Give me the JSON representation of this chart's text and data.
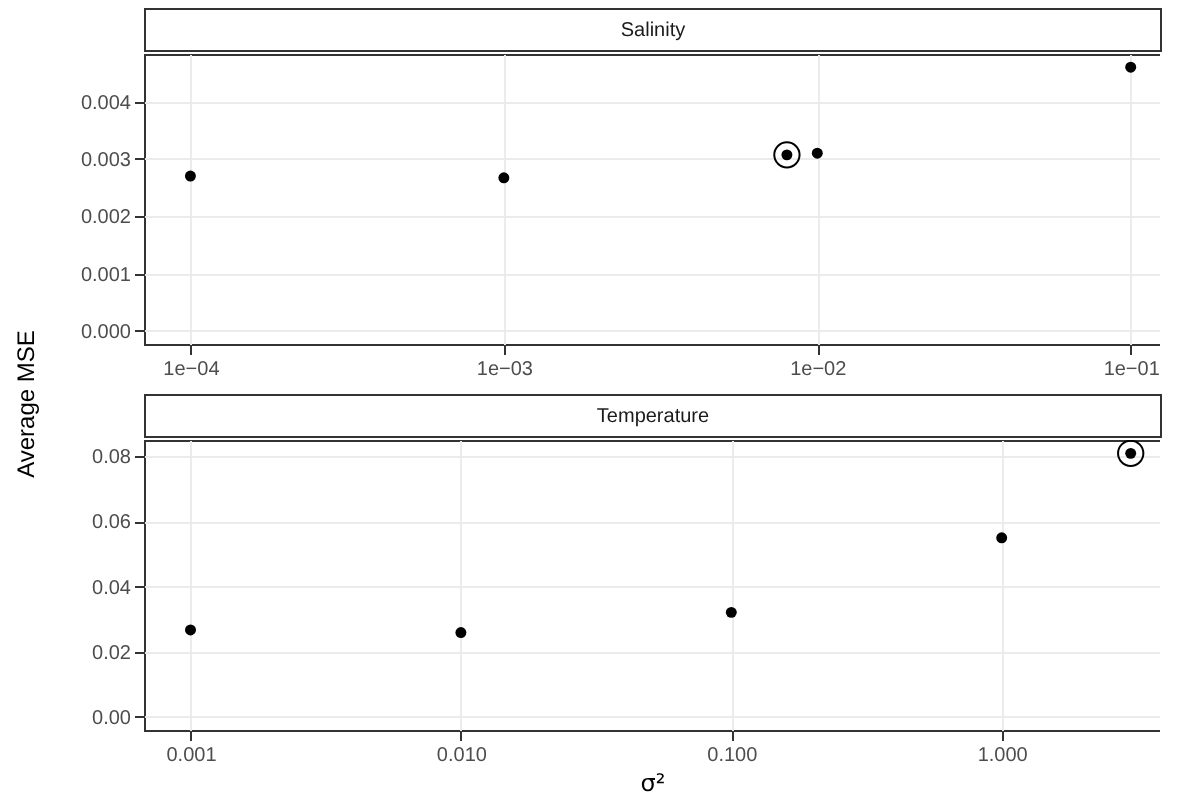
{
  "chart_data": [
    {
      "type": "scatter",
      "title": "Salinity",
      "ylabel": "Average MSE",
      "log": "x",
      "grid": true,
      "marker": "circle",
      "xlim": [
        7.11e-05,
        0.124
      ],
      "ylim": [
        -0.00023,
        0.00483
      ],
      "xticks": [
        {
          "value": 0.0001,
          "label": "1e−04"
        },
        {
          "value": 0.001,
          "label": "1e−03"
        },
        {
          "value": 0.01,
          "label": "1e−02"
        },
        {
          "value": 0.1,
          "label": "1e−01"
        }
      ],
      "yticks": [
        {
          "value": 0,
          "label": "0.000"
        },
        {
          "value": 0.001,
          "label": "0.001"
        },
        {
          "value": 0.002,
          "label": "0.002"
        },
        {
          "value": 0.003,
          "label": "0.003"
        },
        {
          "value": 0.004,
          "label": "0.004"
        }
      ],
      "series": [
        {
          "color": "#000000",
          "x": [
            0.0001,
            0.001,
            0.008,
            0.01,
            0.1
          ],
          "values": [
            0.0027,
            0.00267,
            0.00307,
            0.0031,
            0.0046
          ]
        },
        {
          "color": "#000000",
          "x": [
            0.008
          ],
          "values": [
            0.00307
          ]
        }
      ]
    },
    {
      "type": "scatter",
      "title": "Temperature",
      "xlabel": "σ²",
      "log": "x",
      "grid": true,
      "marker": "circle",
      "xlim": [
        0.000673,
        3.85
      ],
      "ylim": [
        -0.004,
        0.085
      ],
      "xticks": [
        {
          "value": 0.001,
          "label": "0.001"
        },
        {
          "value": 0.01,
          "label": "0.010"
        },
        {
          "value": 0.1,
          "label": "0.100"
        },
        {
          "value": 1,
          "label": "1.000"
        }
      ],
      "yticks": [
        {
          "value": 0,
          "label": "0.00"
        },
        {
          "value": 0.02,
          "label": "0.02"
        },
        {
          "value": 0.04,
          "label": "0.04"
        },
        {
          "value": 0.06,
          "label": "0.06"
        },
        {
          "value": 0.08,
          "label": "0.08"
        }
      ],
      "series": [
        {
          "color": "#000000",
          "x": [
            0.001,
            0.01,
            0.1,
            1,
            3
          ],
          "values": [
            0.0267,
            0.0259,
            0.0321,
            0.055,
            0.0809
          ]
        },
        {
          "color": "#000000",
          "x": [
            3
          ],
          "values": [
            0.0809
          ]
        }
      ]
    }
  ]
}
